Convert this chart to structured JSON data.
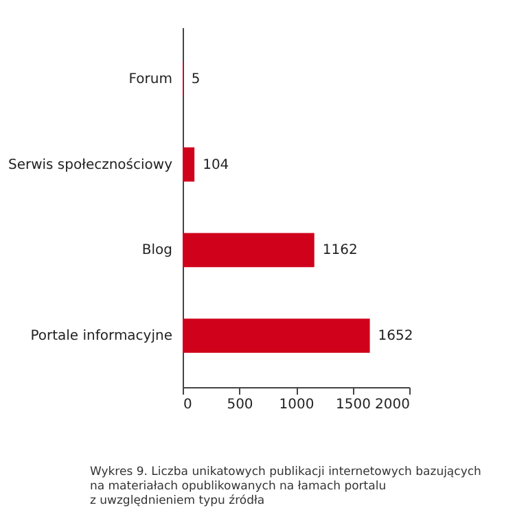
{
  "chart_data": {
    "type": "bar",
    "orientation": "horizontal",
    "categories": [
      "Forum",
      "Serwis społecznościowy",
      "Blog",
      "Portale informacyjne"
    ],
    "values": [
      5,
      104,
      1162,
      1652
    ],
    "color": "#d0021b",
    "xlim": [
      0,
      2000
    ],
    "xticks": [
      0,
      500,
      1000,
      1500,
      2000
    ],
    "grid": false,
    "data_labels": true,
    "annotations": [
      "Wykres 9. Liczba unikatowych publikacji internetowych bazujących\nna materiałach opublikowanych na łamach portalu\nz uwzględnieniem typu źródła"
    ]
  }
}
